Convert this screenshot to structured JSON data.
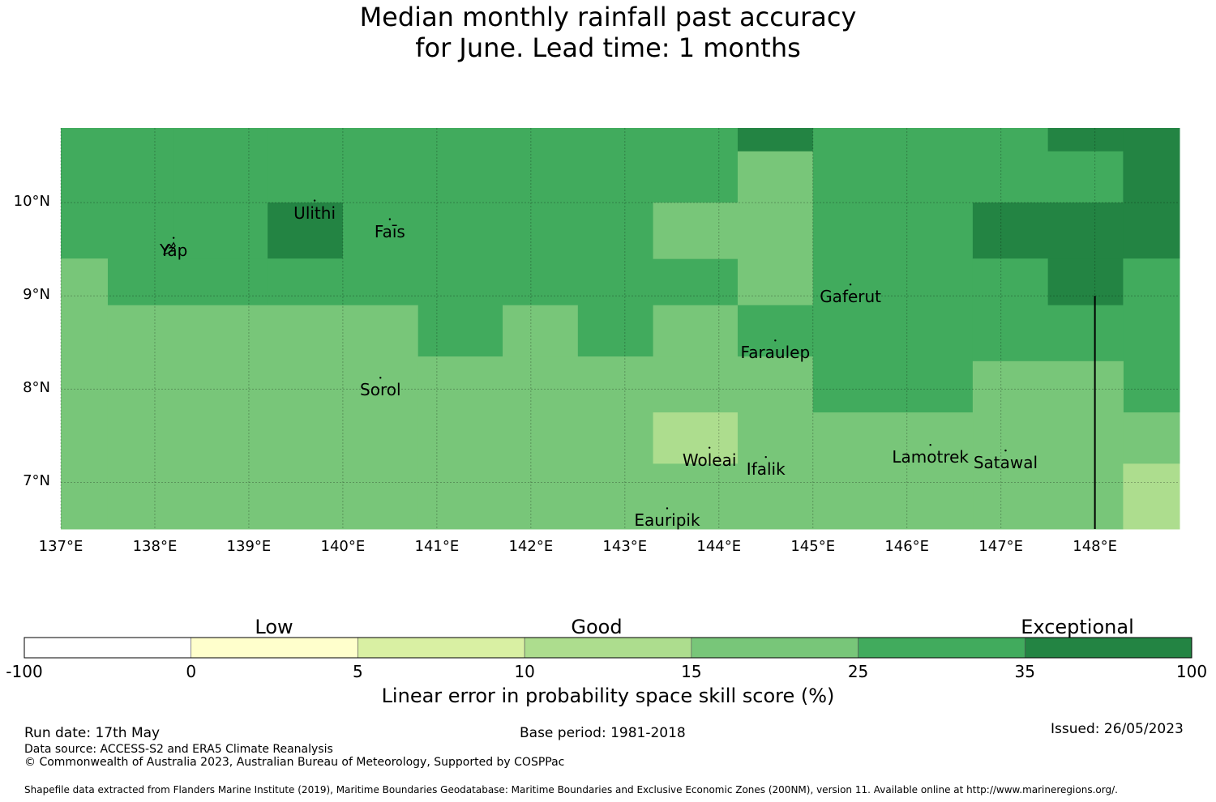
{
  "title_line1": "Median monthly rainfall past accuracy",
  "title_line2": "for June. Lead time: 1 months",
  "map": {
    "lon_ticks": [
      "137°E",
      "138°E",
      "139°E",
      "140°E",
      "141°E",
      "142°E",
      "143°E",
      "144°E",
      "145°E",
      "146°E",
      "147°E",
      "148°E"
    ],
    "lat_ticks": [
      "10°N",
      "9°N",
      "8°N",
      "7°N"
    ],
    "places": [
      {
        "name": "Yap",
        "lon": 138.2,
        "lat": 9.5
      },
      {
        "name": "Ulithi",
        "lon": 139.7,
        "lat": 9.9
      },
      {
        "name": "Faīs",
        "lon": 140.5,
        "lat": 9.7
      },
      {
        "name": "Gaferut",
        "lon": 145.4,
        "lat": 9.0
      },
      {
        "name": "Faraulep",
        "lon": 144.6,
        "lat": 8.4
      },
      {
        "name": "Sorol",
        "lon": 140.4,
        "lat": 8.0
      },
      {
        "name": "Woleai",
        "lon": 143.9,
        "lat": 7.25
      },
      {
        "name": "Ifalik",
        "lon": 144.5,
        "lat": 7.15
      },
      {
        "name": "Lamotrek",
        "lon": 146.25,
        "lat": 7.28
      },
      {
        "name": "Satawal",
        "lon": 147.05,
        "lat": 7.22
      },
      {
        "name": "Eauripik",
        "lon": 143.45,
        "lat": 6.6
      }
    ]
  },
  "chart_data": {
    "type": "heatmap",
    "title": "Median monthly rainfall past accuracy for June. Lead time: 1 months",
    "xlabel": "",
    "ylabel": "",
    "xlim": [
      137.0,
      148.9
    ],
    "ylim": [
      6.5,
      10.8
    ],
    "units": "Linear error in probability space skill score (%)",
    "cells": [
      {
        "lon": [
          137.0,
          138.2
        ],
        "lat": [
          9.4,
          10.8
        ],
        "category": "25-35"
      },
      {
        "lon": [
          137.0,
          137.5
        ],
        "lat": [
          6.5,
          9.4
        ],
        "category": "15-25"
      },
      {
        "lon": [
          137.5,
          139.2
        ],
        "lat": [
          8.9,
          9.4
        ],
        "category": "25-35"
      },
      {
        "lon": [
          138.2,
          139.2
        ],
        "lat": [
          9.4,
          10.8
        ],
        "category": "25-35"
      },
      {
        "lon": [
          139.2,
          140.0
        ],
        "lat": [
          10.0,
          10.8
        ],
        "category": "25-35"
      },
      {
        "lon": [
          139.2,
          140.0
        ],
        "lat": [
          9.4,
          10.0
        ],
        "category": "35-100"
      },
      {
        "lon": [
          139.2,
          140.0
        ],
        "lat": [
          8.9,
          9.4
        ],
        "category": "25-35"
      },
      {
        "lon": [
          140.0,
          144.2
        ],
        "lat": [
          8.9,
          10.8
        ],
        "category": "25-35"
      },
      {
        "lon": [
          137.5,
          140.8
        ],
        "lat": [
          6.5,
          8.9
        ],
        "category": "15-25"
      },
      {
        "lon": [
          140.8,
          141.7
        ],
        "lat": [
          8.35,
          8.9
        ],
        "category": "25-35"
      },
      {
        "lon": [
          141.7,
          142.5
        ],
        "lat": [
          8.35,
          8.9
        ],
        "category": "15-25"
      },
      {
        "lon": [
          142.5,
          143.3
        ],
        "lat": [
          8.35,
          8.9
        ],
        "category": "25-35"
      },
      {
        "lon": [
          143.3,
          144.2
        ],
        "lat": [
          8.35,
          8.9
        ],
        "category": "15-25"
      },
      {
        "lon": [
          140.8,
          143.3
        ],
        "lat": [
          6.5,
          8.35
        ],
        "category": "15-25"
      },
      {
        "lon": [
          143.3,
          144.2
        ],
        "lat": [
          7.75,
          8.35
        ],
        "category": "15-25"
      },
      {
        "lon": [
          143.3,
          144.2
        ],
        "lat": [
          7.2,
          7.75
        ],
        "category": "10-15"
      },
      {
        "lon": [
          143.3,
          144.2
        ],
        "lat": [
          6.5,
          7.2
        ],
        "category": "15-25"
      },
      {
        "lon": [
          143.3,
          144.2
        ],
        "lat": [
          9.4,
          10.0
        ],
        "category": "15-25"
      },
      {
        "lon": [
          144.2,
          145.0
        ],
        "lat": [
          10.55,
          10.8
        ],
        "category": "35-100"
      },
      {
        "lon": [
          144.2,
          145.0
        ],
        "lat": [
          8.9,
          10.55
        ],
        "category": "15-25"
      },
      {
        "lon": [
          144.2,
          145.0
        ],
        "lat": [
          8.35,
          8.9
        ],
        "category": "25-35"
      },
      {
        "lon": [
          144.2,
          145.0
        ],
        "lat": [
          6.5,
          8.35
        ],
        "category": "15-25"
      },
      {
        "lon": [
          145.0,
          147.5
        ],
        "lat": [
          10.0,
          10.8
        ],
        "category": "25-35"
      },
      {
        "lon": [
          147.5,
          148.3
        ],
        "lat": [
          10.55,
          10.8
        ],
        "category": "35-100"
      },
      {
        "lon": [
          147.5,
          148.3
        ],
        "lat": [
          10.0,
          10.55
        ],
        "category": "25-35"
      },
      {
        "lon": [
          148.3,
          148.9
        ],
        "lat": [
          9.4,
          10.8
        ],
        "category": "35-100"
      },
      {
        "lon": [
          145.0,
          146.7
        ],
        "lat": [
          7.75,
          10.0
        ],
        "category": "25-35"
      },
      {
        "lon": [
          146.7,
          148.3
        ],
        "lat": [
          9.4,
          10.0
        ],
        "category": "35-100"
      },
      {
        "lon": [
          146.7,
          147.5
        ],
        "lat": [
          8.9,
          9.4
        ],
        "category": "25-35"
      },
      {
        "lon": [
          147.5,
          148.3
        ],
        "lat": [
          8.9,
          9.4
        ],
        "category": "35-100"
      },
      {
        "lon": [
          146.7,
          148.3
        ],
        "lat": [
          8.3,
          8.9
        ],
        "category": "25-35"
      },
      {
        "lon": [
          148.3,
          148.9
        ],
        "lat": [
          7.75,
          9.4
        ],
        "category": "25-35"
      },
      {
        "lon": [
          146.7,
          148.3
        ],
        "lat": [
          6.5,
          8.3
        ],
        "category": "15-25"
      },
      {
        "lon": [
          145.0,
          146.7
        ],
        "lat": [
          6.5,
          7.75
        ],
        "category": "15-25"
      },
      {
        "lon": [
          148.3,
          148.9
        ],
        "lat": [
          7.2,
          7.75
        ],
        "category": "15-25"
      },
      {
        "lon": [
          148.3,
          148.9
        ],
        "lat": [
          6.5,
          7.2
        ],
        "category": "10-15"
      }
    ],
    "boundary_line": {
      "lon": 148.0,
      "lat": [
        6.5,
        9.0
      ]
    }
  },
  "legend": {
    "bins": [
      {
        "range": "-100-0",
        "color": "#ffffff"
      },
      {
        "range": "0-5",
        "color": "#ffffcc"
      },
      {
        "range": "5-10",
        "color": "#d9f0a3"
      },
      {
        "range": "10-15",
        "color": "#addd8e"
      },
      {
        "range": "15-25",
        "color": "#78c679"
      },
      {
        "range": "25-35",
        "color": "#41ab5d"
      },
      {
        "range": "35-100",
        "color": "#238443"
      }
    ],
    "ticks": [
      "-100",
      "0",
      "5",
      "10",
      "15",
      "25",
      "35",
      "100"
    ],
    "category_labels": [
      "Low",
      "Good",
      "Exceptional"
    ],
    "title": "Linear error in probability space skill score (%)"
  },
  "footer": {
    "run_date": "Run date: 17th May",
    "base_period": "Base period: 1981-2018",
    "issued": "Issued: 26/05/2023",
    "data_source": "Data source: ACCESS-S2 and ERA5 Climate Reanalysis",
    "copyright": "© Commonwealth of Australia 2023, Australian Bureau of Meteorology, Supported by COSPPac",
    "shapefile": "Shapefile data extracted from Flanders Marine Institute (2019), Maritime Boundaries Geodatabase: Maritime Boundaries and Exclusive Economic Zones (200NM), version 11. Available online at http://www.marineregions.org/."
  }
}
